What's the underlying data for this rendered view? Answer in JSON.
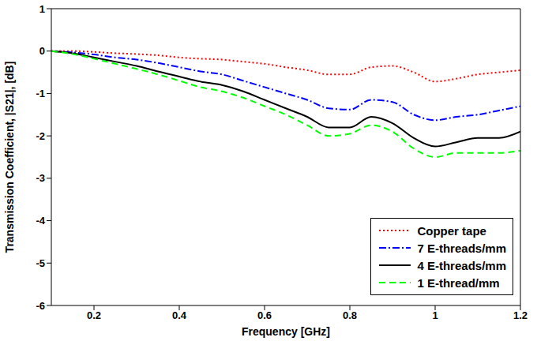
{
  "chart_data": {
    "type": "line",
    "xlabel": "Frequency [GHz]",
    "ylabel": "Transmission Coefficient, |S21|, [dB]",
    "x": [
      0.1,
      0.15,
      0.2,
      0.25,
      0.3,
      0.35,
      0.4,
      0.45,
      0.5,
      0.55,
      0.6,
      0.65,
      0.7,
      0.75,
      0.8,
      0.85,
      0.9,
      0.95,
      1.0,
      1.05,
      1.1,
      1.15,
      1.2
    ],
    "series": [
      {
        "name": "Copper tape",
        "color": "#ff0000",
        "line_style": "dotted",
        "values": [
          0,
          0,
          -0.02,
          -0.05,
          -0.07,
          -0.1,
          -0.15,
          -0.18,
          -0.2,
          -0.25,
          -0.3,
          -0.38,
          -0.45,
          -0.55,
          -0.55,
          -0.38,
          -0.35,
          -0.5,
          -0.72,
          -0.65,
          -0.55,
          -0.5,
          -0.45
        ]
      },
      {
        "name": "7 E-threads/mm",
        "color": "#0000ff",
        "line_style": "dashdot",
        "values": [
          0,
          -0.03,
          -0.08,
          -0.15,
          -0.2,
          -0.28,
          -0.38,
          -0.48,
          -0.55,
          -0.7,
          -0.85,
          -1.0,
          -1.15,
          -1.35,
          -1.38,
          -1.15,
          -1.2,
          -1.5,
          -1.63,
          -1.55,
          -1.5,
          -1.4,
          -1.3
        ]
      },
      {
        "name": "4 E-threads/mm",
        "color": "#000000",
        "line_style": "solid",
        "values": [
          0,
          -0.05,
          -0.15,
          -0.25,
          -0.35,
          -0.48,
          -0.6,
          -0.72,
          -0.8,
          -0.95,
          -1.15,
          -1.35,
          -1.55,
          -1.8,
          -1.8,
          -1.55,
          -1.7,
          -2.05,
          -2.25,
          -2.15,
          -2.05,
          -2.05,
          -1.9
        ]
      },
      {
        "name": "1 E-thread/mm",
        "color": "#00ff00",
        "line_style": "dashed",
        "values": [
          0,
          -0.07,
          -0.18,
          -0.3,
          -0.42,
          -0.55,
          -0.7,
          -0.85,
          -0.95,
          -1.1,
          -1.3,
          -1.5,
          -1.75,
          -2.0,
          -1.95,
          -1.75,
          -1.9,
          -2.3,
          -2.5,
          -2.4,
          -2.4,
          -2.4,
          -2.35
        ]
      }
    ],
    "xlim": [
      0.1,
      1.2
    ],
    "xticks": [
      0.2,
      0.4,
      0.6,
      0.8,
      1,
      1.2
    ],
    "ylim": [
      -6,
      1
    ],
    "yticks": [
      -6,
      -5,
      -4,
      -3,
      -2,
      -1,
      0,
      1
    ],
    "grid": false,
    "legend": "lower right"
  }
}
